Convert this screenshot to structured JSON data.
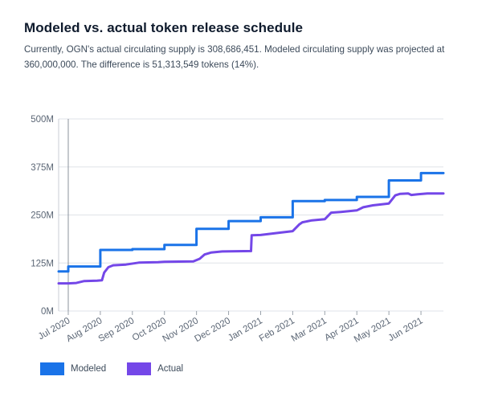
{
  "header": {
    "title": "Modeled vs. actual token release schedule",
    "description": "Currently, OGN's actual circulating supply is 308,686,451. Modeled circulating supply was projected at 360,000,000. The difference is 51,313,549 tokens (14%)."
  },
  "chart_data": {
    "type": "line",
    "title": "Modeled vs. actual token release schedule",
    "xlabel": "",
    "ylabel": "",
    "ylim": [
      0,
      500000000
    ],
    "y_ticks": [
      {
        "value": 0,
        "label": "0M"
      },
      {
        "value": 125000000,
        "label": "125M"
      },
      {
        "value": 250000000,
        "label": "250M"
      },
      {
        "value": 375000000,
        "label": "375M"
      },
      {
        "value": 500000000,
        "label": "500M"
      }
    ],
    "x_ticks": [
      "Jul 2020",
      "Aug 2020",
      "Sep 2020",
      "Oct 2020",
      "Nov 2020",
      "Dec 2020",
      "Jan 2021",
      "Feb 2021",
      "Mar 2021",
      "Apr 2021",
      "May 2021",
      "Jun 2021"
    ],
    "x_range": [
      -0.3,
      11.7
    ],
    "grid": true,
    "legend_position": "bottom-left",
    "series": [
      {
        "name": "Modeled",
        "color": "#1a73e8",
        "points": [
          [
            -0.3,
            103000000
          ],
          [
            0.0,
            103000000
          ],
          [
            0.0,
            116000000
          ],
          [
            1.0,
            116000000
          ],
          [
            1.0,
            159000000
          ],
          [
            2.0,
            159000000
          ],
          [
            2.0,
            161000000
          ],
          [
            3.0,
            161000000
          ],
          [
            3.0,
            172000000
          ],
          [
            4.0,
            172000000
          ],
          [
            4.0,
            214000000
          ],
          [
            5.0,
            214000000
          ],
          [
            5.0,
            234000000
          ],
          [
            6.0,
            234000000
          ],
          [
            6.0,
            244000000
          ],
          [
            7.0,
            244000000
          ],
          [
            7.0,
            286000000
          ],
          [
            8.0,
            286000000
          ],
          [
            8.0,
            289000000
          ],
          [
            9.0,
            289000000
          ],
          [
            9.0,
            297000000
          ],
          [
            10.0,
            297000000
          ],
          [
            10.0,
            340000000
          ],
          [
            11.0,
            340000000
          ],
          [
            11.0,
            359000000
          ],
          [
            11.7,
            359000000
          ]
        ]
      },
      {
        "name": "Actual",
        "color": "#7447e8",
        "points": [
          [
            -0.3,
            72000000
          ],
          [
            0.0,
            72000000
          ],
          [
            0.25,
            73000000
          ],
          [
            0.5,
            78000000
          ],
          [
            0.9,
            79000000
          ],
          [
            1.05,
            80000000
          ],
          [
            1.12,
            100000000
          ],
          [
            1.25,
            114000000
          ],
          [
            1.4,
            119000000
          ],
          [
            1.8,
            121000000
          ],
          [
            2.2,
            126000000
          ],
          [
            2.8,
            127000000
          ],
          [
            3.0,
            128000000
          ],
          [
            3.9,
            129000000
          ],
          [
            4.1,
            136000000
          ],
          [
            4.25,
            147000000
          ],
          [
            4.45,
            152000000
          ],
          [
            4.8,
            155000000
          ],
          [
            5.7,
            156000000
          ],
          [
            5.72,
            197000000
          ],
          [
            6.0,
            198000000
          ],
          [
            6.6,
            204000000
          ],
          [
            7.0,
            208000000
          ],
          [
            7.2,
            225000000
          ],
          [
            7.3,
            231000000
          ],
          [
            7.6,
            236000000
          ],
          [
            8.0,
            239000000
          ],
          [
            8.2,
            256000000
          ],
          [
            8.5,
            258000000
          ],
          [
            9.0,
            262000000
          ],
          [
            9.2,
            270000000
          ],
          [
            9.5,
            275000000
          ],
          [
            10.0,
            280000000
          ],
          [
            10.2,
            301000000
          ],
          [
            10.35,
            305000000
          ],
          [
            10.6,
            306000000
          ],
          [
            10.7,
            302000000
          ],
          [
            10.9,
            304000000
          ],
          [
            11.2,
            306000000
          ],
          [
            11.7,
            306000000
          ]
        ]
      }
    ]
  }
}
